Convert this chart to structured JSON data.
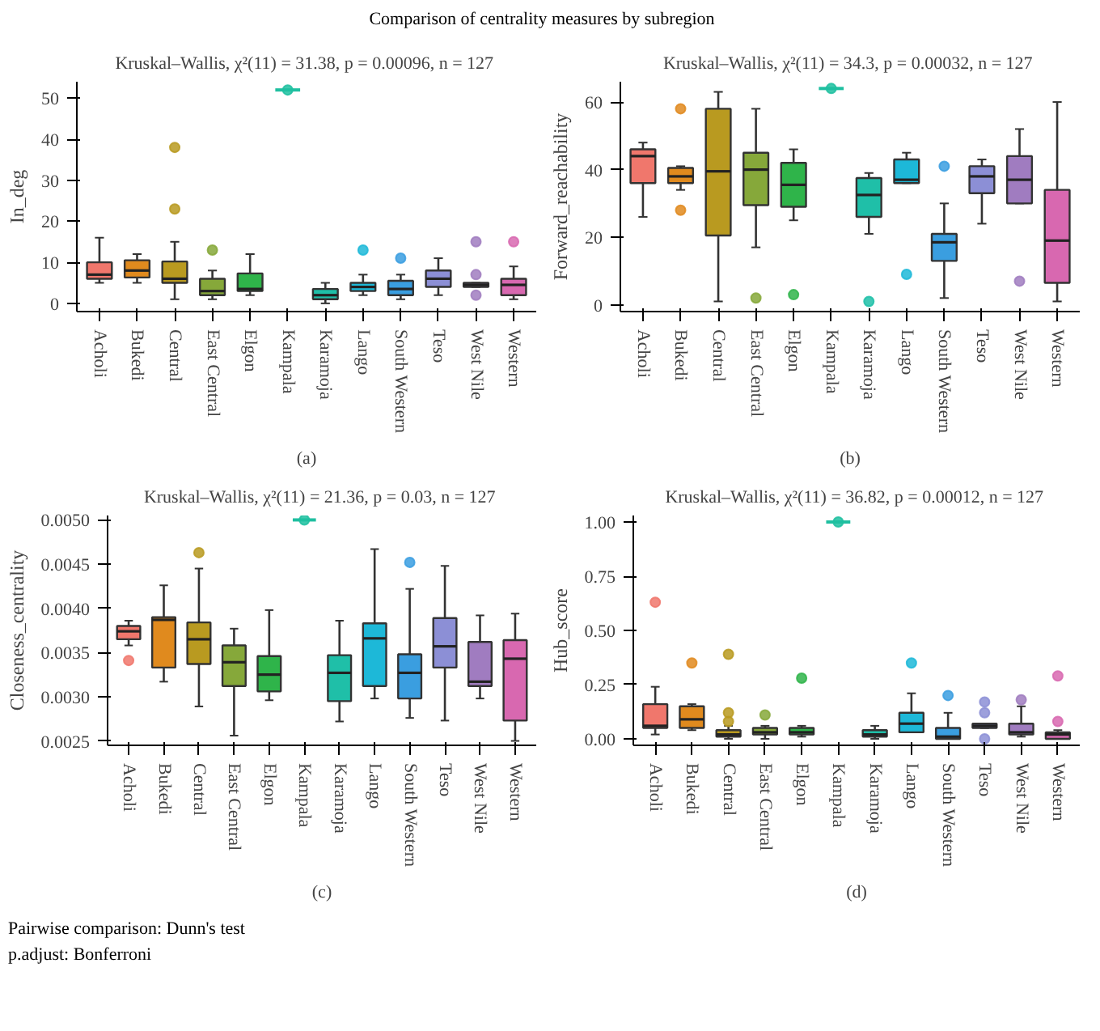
{
  "chart_data": [
    {
      "type": "box",
      "title": "Kruskal–Wallis, χ²(11) = 31.38, p = 0.00096, n  = 127",
      "ylabel": "In_deg",
      "annotations": [
        "Comparison of centrality measures by subregion",
        "(a)"
      ],
      "categories": [
        "Acholi",
        "Bukedi",
        "Central",
        "East Central",
        "Elgon",
        "Kampala",
        "Karamoja",
        "Lango",
        "South Western",
        "Teso",
        "West Nile",
        "Western"
      ],
      "colors": [
        "#f0776c",
        "#e08a1e",
        "#b99a20",
        "#86a83a",
        "#2fb44a",
        "#1fbfa0",
        "#1fbfa8",
        "#1db8d8",
        "#3a9ee0",
        "#8c8fd6",
        "#a07cc0",
        "#d868b0"
      ],
      "ylim": [
        -2,
        54
      ],
      "yticks": [
        0,
        10,
        20,
        30,
        40,
        50
      ],
      "grid": false,
      "boxes": [
        {
          "low": 5,
          "q1": 6,
          "median": 7,
          "q3": 10,
          "high": 16
        },
        {
          "low": 5,
          "q1": 6.3,
          "median": 8,
          "q3": 10.5,
          "high": 12
        },
        {
          "low": 1,
          "q1": 5,
          "median": 6,
          "q3": 10.2,
          "high": 15,
          "outliers": [
            23,
            38
          ]
        },
        {
          "low": 1,
          "q1": 2,
          "median": 3,
          "q3": 6,
          "high": 8,
          "outliers": [
            13
          ]
        },
        {
          "low": 2,
          "q1": 3,
          "median": 3.5,
          "q3": 7.3,
          "high": 12
        },
        {
          "low": 52,
          "q1": 52,
          "median": 52,
          "q3": 52,
          "high": 52,
          "outliers": [
            52
          ]
        },
        {
          "low": 0,
          "q1": 1,
          "median": 2,
          "q3": 3.5,
          "high": 5
        },
        {
          "low": 2,
          "q1": 3,
          "median": 4,
          "q3": 5,
          "high": 7,
          "outliers": [
            13
          ]
        },
        {
          "low": 1,
          "q1": 2,
          "median": 3.5,
          "q3": 5.5,
          "high": 7,
          "outliers": [
            11
          ]
        },
        {
          "low": 2,
          "q1": 4,
          "median": 6,
          "q3": 8,
          "high": 11
        },
        {
          "low": 4,
          "q1": 4,
          "median": 4.5,
          "q3": 5,
          "high": 5,
          "outliers": [
            2,
            7,
            15
          ]
        },
        {
          "low": 1,
          "q1": 2,
          "median": 4.5,
          "q3": 6,
          "high": 9,
          "outliers": [
            15
          ]
        }
      ]
    },
    {
      "type": "box",
      "title": "Kruskal–Wallis, χ²(11) = 34.3, p = 0.00032, n  = 127",
      "ylabel": "Forward_reachability",
      "annotations": [
        "(b)"
      ],
      "categories": [
        "Acholi",
        "Bukedi",
        "Central",
        "East Central",
        "Elgon",
        "Kampala",
        "Karamoja",
        "Lango",
        "South Western",
        "Teso",
        "West Nile",
        "Western"
      ],
      "colors": [
        "#f0776c",
        "#e08a1e",
        "#b99a20",
        "#86a83a",
        "#2fb44a",
        "#1fbfa0",
        "#1fbfa8",
        "#1db8d8",
        "#3a9ee0",
        "#8c8fd6",
        "#a07cc0",
        "#d868b0"
      ],
      "ylim": [
        -2,
        66
      ],
      "yticks": [
        0,
        20,
        40,
        60
      ],
      "grid": false,
      "boxes": [
        {
          "low": 26,
          "q1": 36,
          "median": 44,
          "q3": 46,
          "high": 48
        },
        {
          "low": 34,
          "q1": 36,
          "median": 38,
          "q3": 40.5,
          "high": 41,
          "outliers": [
            28,
            58
          ]
        },
        {
          "low": 1,
          "q1": 20.5,
          "median": 39.5,
          "q3": 58,
          "high": 63
        },
        {
          "low": 17,
          "q1": 29.5,
          "median": 40,
          "q3": 45,
          "high": 58,
          "outliers": [
            2
          ]
        },
        {
          "low": 25,
          "q1": 29,
          "median": 35.5,
          "q3": 42,
          "high": 46,
          "outliers": [
            3
          ]
        },
        {
          "low": 64,
          "q1": 64,
          "median": 64,
          "q3": 64,
          "high": 64,
          "outliers": [
            64
          ]
        },
        {
          "low": 21,
          "q1": 26,
          "median": 32.5,
          "q3": 37.5,
          "high": 39,
          "outliers": [
            1
          ]
        },
        {
          "low": 36,
          "q1": 36,
          "median": 37,
          "q3": 43,
          "high": 45,
          "outliers": [
            9
          ]
        },
        {
          "low": 2,
          "q1": 13,
          "median": 18.5,
          "q3": 21,
          "high": 30,
          "outliers": [
            41
          ]
        },
        {
          "low": 24,
          "q1": 33,
          "median": 38,
          "q3": 41,
          "high": 43
        },
        {
          "low": 30,
          "q1": 30,
          "median": 37,
          "q3": 44,
          "high": 52,
          "outliers": [
            7
          ]
        },
        {
          "low": 1,
          "q1": 6.5,
          "median": 19,
          "q3": 34,
          "high": 60
        }
      ]
    },
    {
      "type": "box",
      "title": "Kruskal–Wallis, χ²(11) = 21.36, p = 0.03, n  = 127",
      "ylabel": "Closeness_centrality",
      "annotations": [
        "(c)",
        "Pairwise comparison: Dunn's test",
        "p.adjust: Bonferroni"
      ],
      "categories": [
        "Acholi",
        "Bukedi",
        "Central",
        "East Central",
        "Elgon",
        "Kampala",
        "Karamoja",
        "Lango",
        "South Western",
        "Teso",
        "West Nile",
        "Western"
      ],
      "colors": [
        "#f0776c",
        "#e08a1e",
        "#b99a20",
        "#86a83a",
        "#2fb44a",
        "#1fbfa0",
        "#1fbfa8",
        "#1db8d8",
        "#3a9ee0",
        "#8c8fd6",
        "#a07cc0",
        "#d868b0"
      ],
      "ylim": [
        0.00245,
        0.00505
      ],
      "yticks": [
        {
          "value": 0.0025,
          "label": "0.0025"
        },
        {
          "value": 0.003,
          "label": "0.0030"
        },
        {
          "value": 0.0035,
          "label": "0.0035"
        },
        {
          "value": 0.004,
          "label": "0.0040"
        },
        {
          "value": 0.0045,
          "label": "0.0045"
        },
        {
          "value": 0.005,
          "label": "0.0050"
        }
      ],
      "grid": false,
      "boxes": [
        {
          "low": 0.00358,
          "q1": 0.00365,
          "median": 0.00374,
          "q3": 0.0038,
          "high": 0.00386,
          "outliers": [
            0.00341
          ]
        },
        {
          "low": 0.00317,
          "q1": 0.00333,
          "median": 0.00387,
          "q3": 0.0039,
          "high": 0.00426
        },
        {
          "low": 0.00289,
          "q1": 0.00337,
          "median": 0.00365,
          "q3": 0.00384,
          "high": 0.00445,
          "outliers": [
            0.00463
          ]
        },
        {
          "low": 0.00256,
          "q1": 0.00312,
          "median": 0.00339,
          "q3": 0.00358,
          "high": 0.00377
        },
        {
          "low": 0.00296,
          "q1": 0.00306,
          "median": 0.00325,
          "q3": 0.00346,
          "high": 0.00398
        },
        {
          "low": 0.005,
          "q1": 0.005,
          "median": 0.005,
          "q3": 0.005,
          "high": 0.005,
          "outliers": [
            0.005
          ]
        },
        {
          "low": 0.00272,
          "q1": 0.00295,
          "median": 0.00327,
          "q3": 0.00347,
          "high": 0.00386
        },
        {
          "low": 0.00298,
          "q1": 0.00312,
          "median": 0.00366,
          "q3": 0.00383,
          "high": 0.00467
        },
        {
          "low": 0.00276,
          "q1": 0.00298,
          "median": 0.00327,
          "q3": 0.00348,
          "high": 0.00422,
          "outliers": [
            0.00452
          ]
        },
        {
          "low": 0.00273,
          "q1": 0.00333,
          "median": 0.00357,
          "q3": 0.00389,
          "high": 0.00448
        },
        {
          "low": 0.00298,
          "q1": 0.00312,
          "median": 0.00317,
          "q3": 0.00362,
          "high": 0.00392
        },
        {
          "low": 0.0025,
          "q1": 0.00273,
          "median": 0.00343,
          "q3": 0.00364,
          "high": 0.00394
        }
      ]
    },
    {
      "type": "box",
      "title": "Kruskal–Wallis, χ²(11) = 36.82, p = 0.00012, n  = 127",
      "ylabel": "Hub_score",
      "annotations": [
        "(d)"
      ],
      "categories": [
        "Acholi",
        "Bukedi",
        "Central",
        "East Central",
        "Elgon",
        "Kampala",
        "Karamoja",
        "Lango",
        "South Western",
        "Teso",
        "West Nile",
        "Western"
      ],
      "colors": [
        "#f0776c",
        "#e08a1e",
        "#b99a20",
        "#86a83a",
        "#2fb44a",
        "#1fbfa0",
        "#1fbfa8",
        "#1db8d8",
        "#3a9ee0",
        "#8c8fd6",
        "#a07cc0",
        "#d868b0"
      ],
      "ylim": [
        -0.03,
        1.03
      ],
      "yticks": [
        {
          "value": 0,
          "label": "0.00"
        },
        {
          "value": 0.25,
          "label": "0.25"
        },
        {
          "value": 0.5,
          "label": "0.50"
        },
        {
          "value": 0.75,
          "label": "0.75"
        },
        {
          "value": 1,
          "label": "1.00"
        }
      ],
      "grid": false,
      "boxes": [
        {
          "low": 0.02,
          "q1": 0.05,
          "median": 0.06,
          "q3": 0.16,
          "high": 0.24,
          "outliers": [
            0.63
          ]
        },
        {
          "low": 0.04,
          "q1": 0.05,
          "median": 0.09,
          "q3": 0.15,
          "high": 0.16,
          "outliers": [
            0.35
          ]
        },
        {
          "low": 0,
          "q1": 0.01,
          "median": 0.02,
          "q3": 0.04,
          "high": 0.06,
          "outliers": [
            0.08,
            0.12,
            0.39
          ]
        },
        {
          "low": 0,
          "q1": 0.02,
          "median": 0.03,
          "q3": 0.05,
          "high": 0.06,
          "outliers": [
            0.11
          ]
        },
        {
          "low": 0.01,
          "q1": 0.02,
          "median": 0.03,
          "q3": 0.05,
          "high": 0.06,
          "outliers": [
            0.28
          ]
        },
        {
          "low": 1,
          "q1": 1,
          "median": 1,
          "q3": 1,
          "high": 1,
          "outliers": [
            1
          ]
        },
        {
          "low": 0,
          "q1": 0.01,
          "median": 0.02,
          "q3": 0.04,
          "high": 0.06
        },
        {
          "low": 0.03,
          "q1": 0.03,
          "median": 0.07,
          "q3": 0.12,
          "high": 0.21,
          "outliers": [
            0.35
          ]
        },
        {
          "low": 0,
          "q1": 0,
          "median": 0.01,
          "q3": 0.05,
          "high": 0.12,
          "outliers": [
            0.2
          ]
        },
        {
          "low": 0.05,
          "q1": 0.05,
          "median": 0.06,
          "q3": 0.07,
          "high": 0.07,
          "outliers": [
            0,
            0.12,
            0.17
          ]
        },
        {
          "low": 0.01,
          "q1": 0.02,
          "median": 0.03,
          "q3": 0.07,
          "high": 0.15,
          "outliers": [
            0.18
          ]
        },
        {
          "low": 0,
          "q1": 0,
          "median": 0.02,
          "q3": 0.03,
          "high": 0.04,
          "outliers": [
            0.08,
            0.29
          ]
        }
      ]
    }
  ]
}
